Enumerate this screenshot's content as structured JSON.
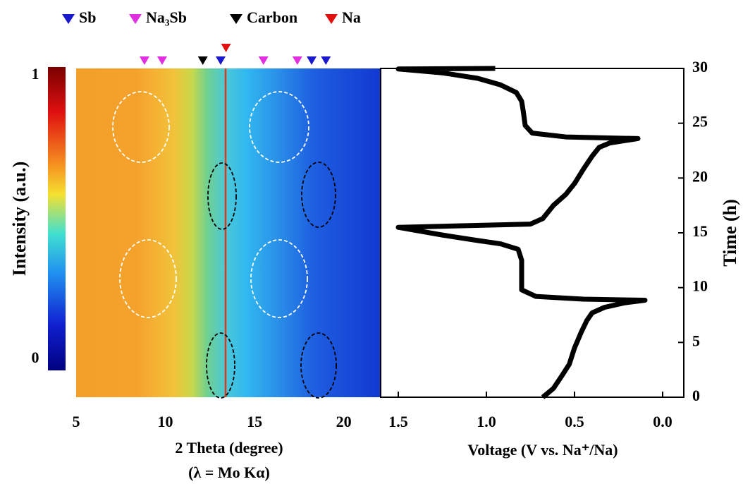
{
  "chart_data": [
    {
      "type": "heatmap",
      "xlabel": "2 Theta (degree)",
      "xlabel2": "(λ = Mo Kα)",
      "colorbar_label": "Intensity (a.u.)",
      "clim": [
        -0.04,
        1.03
      ],
      "cticks": [
        0,
        1
      ],
      "xlim": [
        5,
        22.07
      ],
      "xticks": [
        5,
        10,
        15,
        20
      ],
      "ylim": [
        0,
        30
      ],
      "series": [
        {
          "name": "Sb",
          "color": "#1a1acc",
          "x": [
            13.1,
            18.2,
            19.0
          ]
        },
        {
          "name": "Na₃Sb",
          "color": "#e030e0",
          "x": [
            8.83,
            9.82,
            15.5,
            17.4
          ]
        },
        {
          "name": "Carbon",
          "color": "#000000",
          "x": [
            12.1
          ]
        },
        {
          "name": "Na",
          "color": "#e01010",
          "x": [
            13.4
          ]
        }
      ]
    },
    {
      "type": "line",
      "xlabel": "Voltage (V vs. Na⁺/Na)",
      "ylabel": "Time (h)",
      "xlim": [
        1.6,
        -0.12
      ],
      "xticks": [
        1.5,
        {
          "value": 1.0,
          "label": "1.0"
        },
        0.5,
        {
          "value": 0.0,
          "label": "0.0"
        }
      ],
      "ylim": [
        0,
        30
      ],
      "yticks": [
        0,
        5,
        10,
        15,
        20,
        25,
        30
      ],
      "series": [
        {
          "color": "#000000",
          "x": [
            0.68,
            0.62,
            0.57,
            0.53,
            0.5,
            0.46,
            0.43,
            0.4,
            0.33,
            0.22,
            0.1,
            0.45,
            0.72,
            0.8,
            0.8,
            0.8,
            0.82,
            0.92,
            1.05,
            1.25,
            1.5,
            0.75,
            0.68,
            0.62,
            0.55,
            0.5,
            0.45,
            0.4,
            0.36,
            0.3,
            0.14,
            0.55,
            0.74,
            0.78,
            0.79,
            0.8,
            0.83,
            0.92,
            1.05,
            1.25,
            1.5,
            0.95
          ],
          "values": [
            0,
            0.8,
            2,
            3,
            4.5,
            6,
            7,
            7.7,
            8.2,
            8.6,
            8.85,
            8.95,
            9.2,
            9.8,
            11,
            12.5,
            13.5,
            14,
            14.3,
            14.8,
            15.5,
            15.8,
            16.3,
            17.5,
            18.5,
            19.5,
            20.8,
            22,
            22.8,
            23.2,
            23.6,
            23.75,
            24.1,
            24.8,
            26,
            27,
            27.8,
            28.5,
            29.1,
            29.6,
            29.95,
            30
          ]
        }
      ]
    }
  ]
}
